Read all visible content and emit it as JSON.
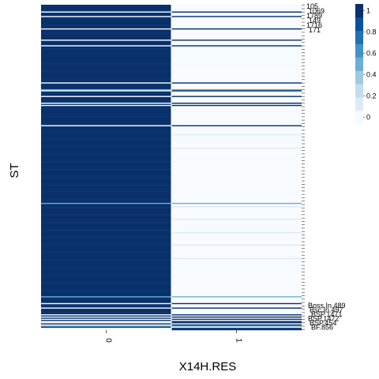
{
  "chart_data": {
    "type": "heatmap",
    "xlabel": "X14H.RES",
    "ylabel": "ST",
    "x_categories": [
      "0",
      "1"
    ],
    "y_tick_labels_visible_top": [
      "105",
      "1069",
      "1789",
      "149",
      "1716",
      "171"
    ],
    "y_tick_labels_visible_bottom": [
      "Boss.In.489",
      "Bsc.In.497",
      "BSP.1471",
      "BSP.1472",
      "BSP.454",
      "BF.856"
    ],
    "colorbar": {
      "ticks": [
        "0",
        "0.2",
        "0.4",
        "0.6",
        "0.8",
        "1"
      ],
      "range": [
        0,
        1
      ],
      "colors": [
        "#f7fbff",
        "#deebf7",
        "#c6dbef",
        "#9ecae1",
        "#6baed6",
        "#4292c6",
        "#2171b5",
        "#08519c",
        "#08306b"
      ]
    },
    "column0_row_pattern": "1111110111011111111110111111111011110111111111111111111111111111111110111111011110111110101111111111111111101111111111111111111111111111111111111111111111111111111111111111111111111111111111111111111111111111111111111111111111111111111111111111111111111111111111111011101111101010100101100",
    "highlight_rows_mid": [
      26,
      61,
      90,
      99
    ],
    "highlight_value": 0.55,
    "light_rows_col1": [
      40,
      44,
      62,
      66,
      70,
      74,
      78
    ],
    "light_value_col1": 0.08
  }
}
